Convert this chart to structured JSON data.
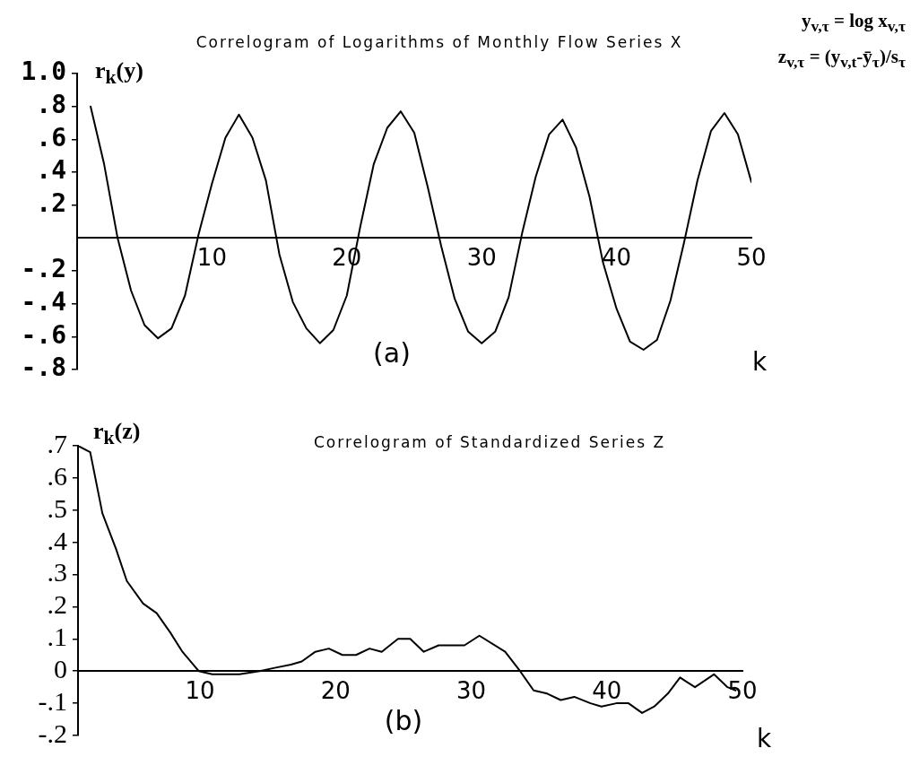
{
  "chart_data": [
    {
      "type": "line",
      "title": "Correlogram of Logarithms of Monthly Flow Series X",
      "xlabel": "k",
      "ylabel": "r$_{k}$(y)",
      "annotations": [
        "(a)",
        "y$_{v,τ}$ = log x$_{v,τ}$",
        "z$_{v,τ}$ = (y$_{v,t}$-ȳ$_{τ}$)/s$_{τ}$"
      ],
      "x": [
        1,
        2,
        3,
        4,
        5,
        6,
        7,
        8,
        9,
        10,
        11,
        12,
        13,
        14,
        15,
        16,
        17,
        18,
        19,
        20,
        21,
        22,
        23,
        24,
        25,
        26,
        27,
        28,
        29,
        30,
        31,
        32,
        33,
        34,
        35,
        36,
        37,
        38,
        39,
        40,
        41,
        42,
        43,
        44,
        45,
        46,
        47,
        48,
        49,
        50
      ],
      "series": [
        {
          "color": "#000000",
          "values": [
            0.8,
            0.45,
            0.0,
            -0.32,
            -0.53,
            -0.61,
            -0.55,
            -0.35,
            0.02,
            0.33,
            0.61,
            0.75,
            0.61,
            0.35,
            -0.1,
            -0.39,
            -0.55,
            -0.64,
            -0.56,
            -0.35,
            0.07,
            0.45,
            0.67,
            0.77,
            0.64,
            0.31,
            -0.05,
            -0.37,
            -0.57,
            -0.64,
            -0.57,
            -0.36,
            0.03,
            0.37,
            0.63,
            0.72,
            0.55,
            0.25,
            -0.15,
            -0.43,
            -0.63,
            -0.68,
            -0.62,
            -0.38,
            -0.03,
            0.35,
            0.65,
            0.76,
            0.63,
            0.34
          ]
        }
      ],
      "xlim": [
        0,
        50
      ],
      "xticks": [
        10,
        20,
        30,
        40,
        50
      ],
      "ylim": [
        -0.8,
        1.0
      ],
      "yticks": [
        {
          "value": 1.0,
          "label": "1.0"
        },
        {
          "value": 0.8,
          "label": ".8"
        },
        {
          "value": 0.6,
          "label": ".6"
        },
        {
          "value": 0.4,
          "label": ".4"
        },
        {
          "value": 0.2,
          "label": ".2"
        },
        {
          "value": -0.2,
          "label": "-.2"
        },
        {
          "value": -0.4,
          "label": "-.4"
        },
        {
          "value": -0.6,
          "label": "-.6"
        },
        {
          "value": -0.8,
          "label": "-.8"
        }
      ],
      "grid": false,
      "legend": false,
      "marker": "none",
      "line_style": "solid"
    },
    {
      "type": "line",
      "title": "Correlogram of Standardized Series Z",
      "xlabel": "k",
      "ylabel": "r$_{k}$(z)",
      "annotations": [
        "(b)"
      ],
      "x": [
        1,
        1.9,
        2.8,
        3.8,
        4.6,
        5.8,
        6.8,
        7.8,
        8.7,
        9.9,
        10.9,
        12.9,
        14.4,
        15.5,
        16.7,
        17.5,
        18.5,
        19.5,
        20.5,
        21.5,
        22.5,
        23.4,
        24.6,
        25.5,
        26.5,
        27.6,
        29.5,
        30.6,
        32.5,
        33.6,
        34.6,
        35.6,
        36.6,
        37.6,
        38.8,
        39.6,
        40.7,
        41.6,
        42.6,
        43.5,
        44.5,
        45.4,
        46.5,
        47.9,
        48.9,
        49.5
      ],
      "series": [
        {
          "color": "#000000",
          "values": [
            0.7,
            0.68,
            0.49,
            0.38,
            0.28,
            0.21,
            0.18,
            0.12,
            0.06,
            0.0,
            -0.01,
            -0.01,
            0.0,
            0.01,
            0.02,
            0.03,
            0.06,
            0.07,
            0.05,
            0.05,
            0.07,
            0.06,
            0.1,
            0.1,
            0.06,
            0.08,
            0.08,
            0.11,
            0.06,
            0.0,
            -0.06,
            -0.07,
            -0.09,
            -0.08,
            -0.1,
            -0.11,
            -0.1,
            -0.1,
            -0.13,
            -0.11,
            -0.07,
            -0.02,
            -0.05,
            -0.01,
            -0.05,
            -0.06
          ]
        }
      ],
      "xlim": [
        1,
        50
      ],
      "xticks": [
        10,
        20,
        30,
        40,
        50
      ],
      "ylim": [
        -0.2,
        0.7
      ],
      "yticks": [
        {
          "value": 0.7,
          "label": ".7"
        },
        {
          "value": 0.6,
          "label": ".6"
        },
        {
          "value": 0.5,
          "label": ".5"
        },
        {
          "value": 0.4,
          "label": ".4"
        },
        {
          "value": 0.3,
          "label": ".3"
        },
        {
          "value": 0.2,
          "label": ".2"
        },
        {
          "value": 0.1,
          "label": ".1"
        },
        0,
        {
          "value": -0.1,
          "label": "-.1"
        },
        {
          "value": -0.2,
          "label": "-.2"
        }
      ],
      "grid": false,
      "legend": false,
      "marker": "none",
      "line_style": "solid"
    }
  ]
}
